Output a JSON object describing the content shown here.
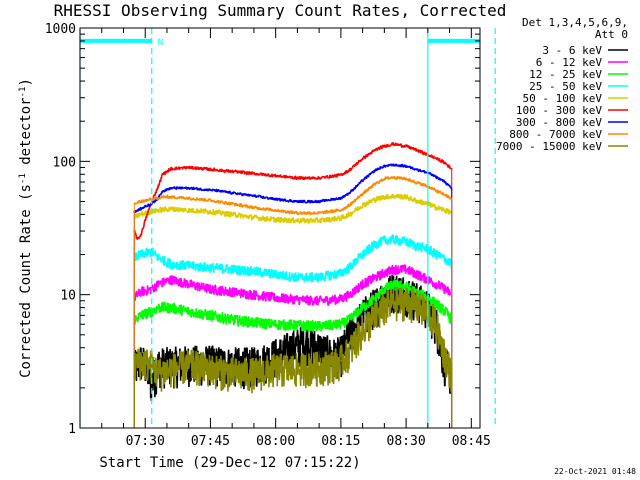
{
  "chart_data": {
    "type": "line",
    "title": "RHESSI Observing Summary Count Rates, Corrected",
    "xlabel": "Start Time (29-Dec-12 07:15:22)",
    "ylabel_main": "Corrected Count Rate (s",
    "ylabel_sup1": "-1",
    "ylabel_mid": " detector",
    "ylabel_sup2": "-1",
    "ylabel_end": ")",
    "y_scale": "log",
    "ylim": [
      1,
      1000
    ],
    "xlim_minutes": [
      0,
      92
    ],
    "y_ticks": [
      "1",
      "10",
      "100",
      "1000"
    ],
    "x_ticks": [
      {
        "label": "07:30",
        "minute": 15
      },
      {
        "label": "07:45",
        "minute": 30
      },
      {
        "label": "08:00",
        "minute": 45
      },
      {
        "label": "08:15",
        "minute": 60
      },
      {
        "label": "08:30",
        "minute": 75
      },
      {
        "label": "08:45",
        "minute": 90
      }
    ],
    "legend_header": [
      "Det 1,3,4,5,6,9,",
      "Att 0"
    ],
    "legend_placement": "right",
    "footer": "22-Oct-2021 01:48",
    "night_marker": "N",
    "night_bars": [
      {
        "start": -2,
        "end": 16.5,
        "level": 800
      },
      {
        "start": 80,
        "end": 95.5,
        "level": 800
      }
    ],
    "solid_lines_minutes": [
      0,
      80
    ],
    "dashed_lines_minutes": [
      16.5,
      95.5
    ],
    "data_start_minute": 12.5,
    "data_end_minute": 85.5,
    "series": [
      {
        "name": "3 - 6 keV",
        "color": "#000000",
        "x": [
          12.5,
          14,
          15,
          16.5,
          18,
          21,
          25,
          30,
          35,
          40,
          45,
          50,
          52,
          55,
          58,
          60,
          62,
          65,
          68,
          70,
          72,
          75,
          77,
          80,
          82,
          83,
          84,
          85.5
        ],
        "y": [
          2.8,
          3.2,
          3.0,
          2.2,
          3.0,
          3.0,
          3.1,
          3.1,
          3.0,
          3.0,
          3.5,
          4.2,
          4.5,
          4.0,
          3.5,
          3.6,
          5.0,
          7.0,
          8.5,
          10.0,
          11.0,
          10.5,
          9.5,
          8.0,
          6.0,
          4.0,
          3.0,
          2.5
        ]
      },
      {
        "name": "6 - 12 keV",
        "color": "#ff00ff",
        "x": [
          12.5,
          14,
          16.5,
          18,
          21,
          25,
          30,
          35,
          40,
          45,
          50,
          55,
          60,
          62,
          65,
          68,
          70,
          72,
          75,
          77,
          80,
          82,
          84,
          85.5
        ],
        "y": [
          9.5,
          10.5,
          11.0,
          12.0,
          13.0,
          12.0,
          11.0,
          10.5,
          10.0,
          9.5,
          9.2,
          9.0,
          9.3,
          10.0,
          12.0,
          13.5,
          14.5,
          15.5,
          15.5,
          14.5,
          13.0,
          12.0,
          11.0,
          10.0
        ]
      },
      {
        "name": "12 - 25 keV",
        "color": "#00ff00",
        "x": [
          12.5,
          14,
          16.5,
          18,
          21,
          25,
          30,
          35,
          40,
          45,
          50,
          55,
          60,
          62,
          65,
          68,
          70,
          72,
          75,
          77,
          80,
          82,
          84,
          85.5
        ],
        "y": [
          6.5,
          7.0,
          7.5,
          8.0,
          8.0,
          7.5,
          7.0,
          6.5,
          6.2,
          6.0,
          5.9,
          5.8,
          6.0,
          6.5,
          8.0,
          9.5,
          11.0,
          11.8,
          11.5,
          10.5,
          9.5,
          8.5,
          7.5,
          6.5
        ]
      },
      {
        "name": "25 - 50 keV",
        "color": "#00ffff",
        "x": [
          12.5,
          14,
          16.5,
          18,
          21,
          25,
          30,
          35,
          40,
          45,
          50,
          55,
          60,
          62,
          65,
          68,
          70,
          72,
          75,
          77,
          80,
          82,
          84,
          85.5
        ],
        "y": [
          19.0,
          20.0,
          21.0,
          19.0,
          17.0,
          16.5,
          16.0,
          15.5,
          15.0,
          14.2,
          13.5,
          13.5,
          14.5,
          16.0,
          20.0,
          24.0,
          25.5,
          26.0,
          25.0,
          23.5,
          22.0,
          20.0,
          18.5,
          17.0
        ]
      },
      {
        "name": "50 - 100 keV",
        "color": "#ddcc00",
        "x": [
          12.5,
          14,
          16.5,
          18,
          21,
          25,
          30,
          35,
          40,
          45,
          50,
          55,
          60,
          62,
          65,
          68,
          70,
          72,
          75,
          77,
          80,
          82,
          84,
          85.5
        ],
        "y": [
          38.0,
          40.0,
          42.0,
          43.0,
          44.0,
          43.0,
          42.0,
          40.0,
          38.0,
          36.5,
          36.0,
          36.0,
          37.5,
          40.0,
          47.0,
          52.0,
          54.0,
          55.0,
          54.0,
          51.0,
          48.0,
          45.0,
          43.0,
          41.0
        ]
      },
      {
        "name": "100 - 300 keV",
        "color": "#ff0000",
        "x": [
          12.5,
          13.2,
          14,
          15,
          16.5,
          18,
          19,
          21,
          25,
          30,
          35,
          40,
          45,
          50,
          55,
          60,
          62,
          65,
          68,
          70,
          72,
          75,
          77,
          80,
          82,
          84,
          85.5
        ],
        "y": [
          30.0,
          26.0,
          28.0,
          36.0,
          50.0,
          65.0,
          80.0,
          88.0,
          90.0,
          87.0,
          84.0,
          81.0,
          78.0,
          75.0,
          75.0,
          79.0,
          86.0,
          105.0,
          122.0,
          130.0,
          135.0,
          130.0,
          123.0,
          112.0,
          105.0,
          97.0,
          88.0
        ]
      },
      {
        "name": "300 - 800 keV",
        "color": "#0000ff",
        "x": [
          12.5,
          14,
          15,
          16.5,
          18,
          19,
          21,
          25,
          30,
          35,
          40,
          45,
          50,
          55,
          60,
          62,
          65,
          68,
          70,
          72,
          75,
          77,
          80,
          82,
          84,
          85.5
        ],
        "y": [
          42.0,
          44.0,
          46.0,
          48.0,
          53.0,
          60.0,
          63.0,
          63.0,
          61.0,
          58.0,
          55.0,
          52.0,
          50.0,
          50.0,
          53.0,
          58.0,
          72.0,
          86.0,
          92.0,
          94.0,
          92.0,
          88.0,
          82.0,
          76.0,
          70.0,
          62.0
        ]
      },
      {
        "name": "800 - 7000 keV",
        "color": "#ff8800",
        "x": [
          12.5,
          14,
          16.5,
          18,
          19,
          21,
          25,
          30,
          35,
          40,
          45,
          50,
          55,
          60,
          62,
          65,
          68,
          70,
          72,
          75,
          77,
          80,
          82,
          84,
          85.5
        ],
        "y": [
          48.0,
          50.0,
          52.0,
          53.0,
          54.0,
          54.0,
          53.0,
          51.0,
          48.0,
          45.0,
          43.0,
          41.0,
          41.0,
          43.0,
          47.0,
          57.0,
          68.0,
          74.0,
          76.0,
          74.0,
          70.0,
          65.0,
          60.0,
          56.0,
          52.0
        ]
      },
      {
        "name": "7000 - 15000 keV",
        "color": "#888800",
        "x": [
          12.5,
          14,
          16.5,
          18,
          21,
          25,
          30,
          35,
          40,
          45,
          50,
          55,
          58,
          60,
          62,
          65,
          68,
          70,
          72,
          75,
          77,
          80,
          82,
          83,
          84,
          85.5
        ],
        "y": [
          3.0,
          3.2,
          3.0,
          2.6,
          2.8,
          3.0,
          2.8,
          2.6,
          2.6,
          2.8,
          2.8,
          2.9,
          3.0,
          3.2,
          3.8,
          5.5,
          7.0,
          8.0,
          8.8,
          9.0,
          8.5,
          7.5,
          6.0,
          4.5,
          3.5,
          2.5
        ]
      }
    ]
  }
}
